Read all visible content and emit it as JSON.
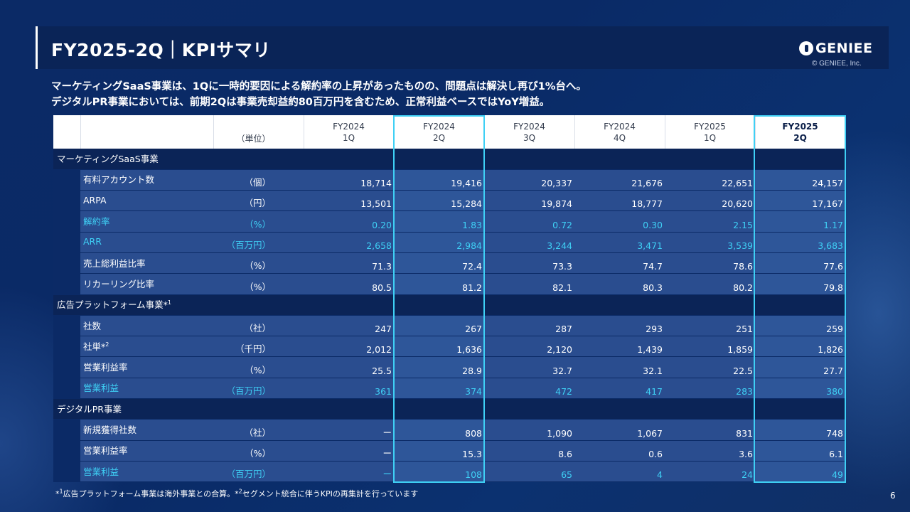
{
  "header": {
    "title": "FY2025-2Q｜KPIサマリ",
    "logo_text": "GENIEE",
    "copyright": "© GENIEE, Inc."
  },
  "subtitle": {
    "line1": "マーケティングSaaS事業は、1Qに一時的要因による解約率の上昇があったものの、問題点は解決し再び1%台へ。",
    "line2": "デジタルPR事業においては、前期2Qは事業売却益約80百万円を含むため、正常利益ベースではYoY増益。"
  },
  "table": {
    "unit_header": "（単位）",
    "columns": [
      {
        "year": "FY2024",
        "quarter": "1Q"
      },
      {
        "year": "FY2024",
        "quarter": "2Q"
      },
      {
        "year": "FY2024",
        "quarter": "3Q"
      },
      {
        "year": "FY2024",
        "quarter": "4Q"
      },
      {
        "year": "FY2025",
        "quarter": "1Q"
      },
      {
        "year": "FY2025",
        "quarter": "2Q"
      }
    ],
    "sections": [
      {
        "title": "マーケティングSaaS事業",
        "rows": [
          {
            "label": "有料アカウント数",
            "unit": "（個）",
            "values": [
              "18,714",
              "19,416",
              "20,337",
              "21,676",
              "22,651",
              "24,157"
            ]
          },
          {
            "label": "ARPA",
            "unit": "（円）",
            "values": [
              "13,501",
              "15,284",
              "19,874",
              "18,777",
              "20,620",
              "17,167"
            ]
          },
          {
            "label": "解約率",
            "unit": "（%）",
            "values": [
              "0.20",
              "1.83",
              "0.72",
              "0.30",
              "2.15",
              "1.17"
            ]
          },
          {
            "label": "ARR",
            "unit": "（百万円）",
            "values": [
              "2,658",
              "2,984",
              "3,244",
              "3,471",
              "3,539",
              "3,683"
            ]
          },
          {
            "label": "売上総利益比率",
            "unit": "（%）",
            "values": [
              "71.3",
              "72.4",
              "73.3",
              "74.7",
              "78.6",
              "77.6"
            ]
          },
          {
            "label": "リカーリング比率",
            "unit": "（%）",
            "values": [
              "80.5",
              "81.2",
              "82.1",
              "80.3",
              "80.2",
              "79.8"
            ]
          }
        ]
      },
      {
        "title": "広告プラットフォーム事業*",
        "title_sup": "1",
        "rows": [
          {
            "label": "社数",
            "unit": "（社）",
            "values": [
              "247",
              "267",
              "287",
              "293",
              "251",
              "259"
            ]
          },
          {
            "label": "社単*",
            "label_sup": "2",
            "unit": "（千円）",
            "values": [
              "2,012",
              "1,636",
              "2,120",
              "1,439",
              "1,859",
              "1,826"
            ]
          },
          {
            "label": "営業利益率",
            "unit": "（%）",
            "values": [
              "25.5",
              "28.9",
              "32.7",
              "32.1",
              "22.5",
              "27.7"
            ]
          },
          {
            "label": "営業利益",
            "unit": "（百万円）",
            "values": [
              "361",
              "374",
              "472",
              "417",
              "283",
              "380"
            ]
          }
        ]
      },
      {
        "title": "デジタルPR事業",
        "rows": [
          {
            "label": "新規獲得社数",
            "unit": "（社）",
            "values": [
              "ー",
              "808",
              "1,090",
              "1,067",
              "831",
              "748"
            ]
          },
          {
            "label": "営業利益率",
            "unit": "（%）",
            "values": [
              "ー",
              "15.3",
              "8.6",
              "0.6",
              "3.6",
              "6.1"
            ]
          },
          {
            "label": "営業利益",
            "unit": "（百万円）",
            "values": [
              "ー",
              "108",
              "65",
              "4",
              "24",
              "49"
            ]
          }
        ]
      }
    ]
  },
  "footnote": {
    "part1": "広告プラットフォーム事業は海外事業との合算。",
    "part2": "セグメント統合に伴うKPIの再集計を行っています",
    "mark1": "*",
    "sup1": "1",
    "mark2": "*",
    "sup2": "2"
  },
  "page_number": "6",
  "colors": {
    "background": "#0b2a66",
    "title_bar": "#0a2457",
    "cell": "#2a4d8f",
    "highlight": "#3fd0f5"
  }
}
